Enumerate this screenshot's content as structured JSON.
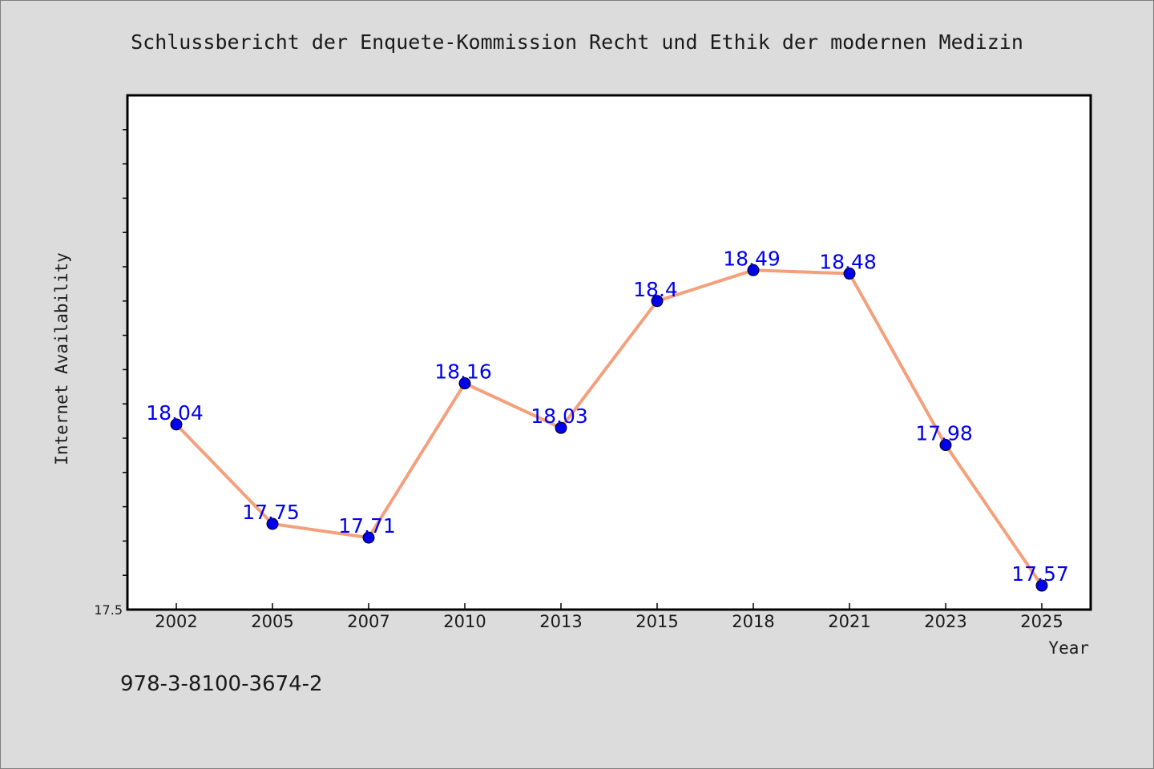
{
  "chart_data": {
    "type": "line",
    "title": "Schlussbericht der Enquete-Kommission Recht und Ethik der modernen Medizin",
    "xlabel": "Year",
    "ylabel": "Internet Availability",
    "categories": [
      "2002",
      "2005",
      "2007",
      "2010",
      "2013",
      "2015",
      "2018",
      "2021",
      "2023",
      "2025"
    ],
    "series": [
      {
        "values": [
          18.04,
          17.75,
          17.71,
          18.16,
          18.03,
          18.4,
          18.49,
          18.48,
          17.98,
          17.57
        ],
        "labels": [
          "18.04",
          "17.75",
          "17.71",
          "18.16",
          "18.03",
          "18.4",
          "18.49",
          "18.48",
          "17.98",
          "17.57"
        ]
      }
    ],
    "ylim": [
      17.5,
      19.0
    ],
    "yticks": [
      17.5
    ],
    "ytick_labels": [
      "17.5"
    ],
    "ytick_minor_step": 0.1,
    "grid": false,
    "line_color": "#f4a07c",
    "marker_color": "#0000ee",
    "label_color": "#0000ee"
  },
  "footer": {
    "isbn": "978-3-8100-3674-2"
  }
}
